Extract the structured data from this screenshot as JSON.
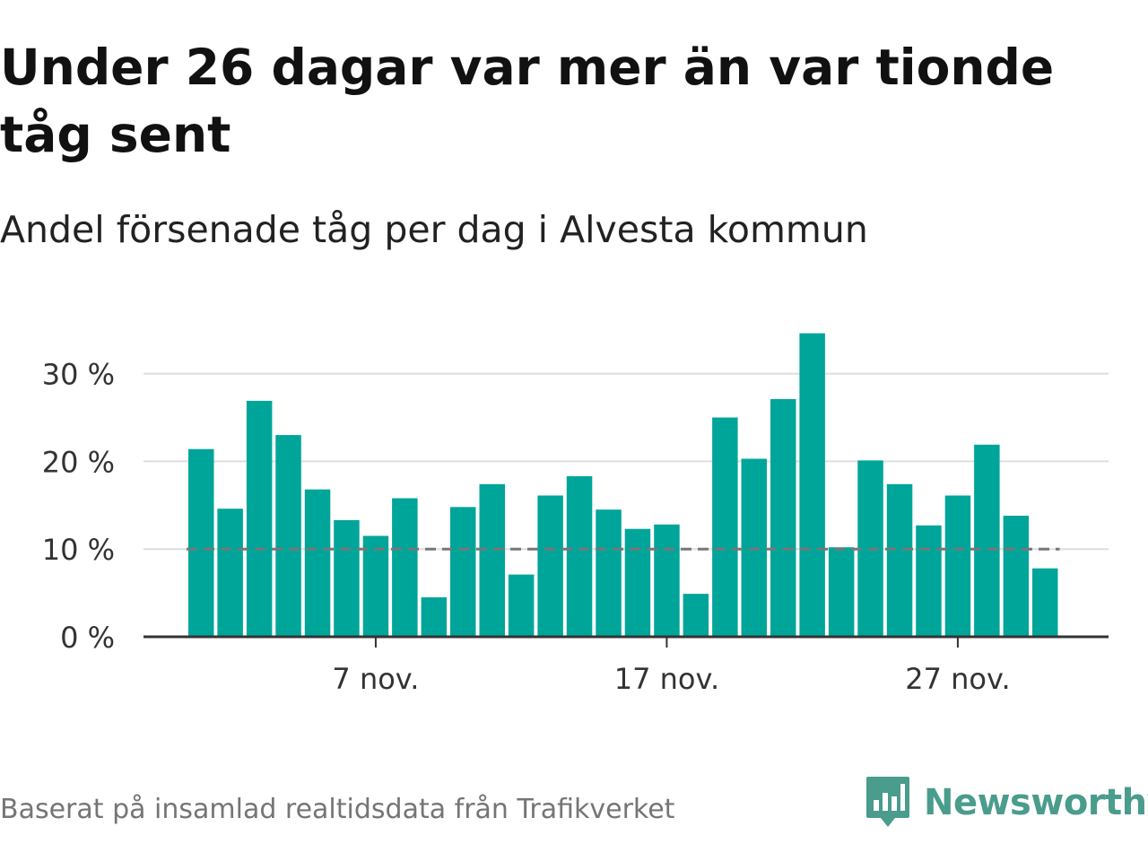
{
  "title": "Under 26 dagar var mer än var tionde tåg sent",
  "subtitle": "Andel försenade tåg per dag i Alvesta kommun",
  "footer": "Baserat på insamlad realtidsdata från Trafikverket",
  "brand": {
    "name": "Newsworthy",
    "icon": "newsworthy-logo-icon",
    "color": "#4a9c8c"
  },
  "colors": {
    "bar": "#00a59a",
    "grid": "#dddddd",
    "axis": "#333333",
    "reference_line": "#777777"
  },
  "chart_data": {
    "type": "bar",
    "x": [
      "1 nov.",
      "2 nov.",
      "3 nov.",
      "4 nov.",
      "5 nov.",
      "6 nov.",
      "7 nov.",
      "8 nov.",
      "9 nov.",
      "10 nov.",
      "11 nov.",
      "12 nov.",
      "13 nov.",
      "14 nov.",
      "15 nov.",
      "16 nov.",
      "17 nov.",
      "18 nov.",
      "19 nov.",
      "20 nov.",
      "21 nov.",
      "22 nov.",
      "23 nov.",
      "24 nov.",
      "25 nov.",
      "26 nov.",
      "27 nov.",
      "28 nov.",
      "29 nov.",
      "30 nov."
    ],
    "values": [
      21.4,
      14.6,
      26.9,
      23.0,
      16.8,
      13.3,
      11.5,
      15.8,
      4.5,
      14.8,
      17.4,
      7.1,
      16.1,
      18.3,
      14.5,
      12.3,
      12.8,
      4.9,
      25.0,
      20.3,
      27.1,
      34.6,
      10.2,
      20.1,
      17.4,
      12.7,
      16.1,
      21.9,
      13.8,
      7.8
    ],
    "xticks": [
      {
        "index": 6,
        "label": "7 nov."
      },
      {
        "index": 16,
        "label": "17 nov."
      },
      {
        "index": 26,
        "label": "27 nov."
      }
    ],
    "yticks": [
      {
        "value": 0,
        "label": "0 %"
      },
      {
        "value": 10,
        "label": "10 %"
      },
      {
        "value": 20,
        "label": "20 %"
      },
      {
        "value": 30,
        "label": "30 %"
      }
    ],
    "ylim": [
      0,
      36
    ],
    "reference_line": 10,
    "grid": true,
    "xlabel": "",
    "ylabel": ""
  }
}
